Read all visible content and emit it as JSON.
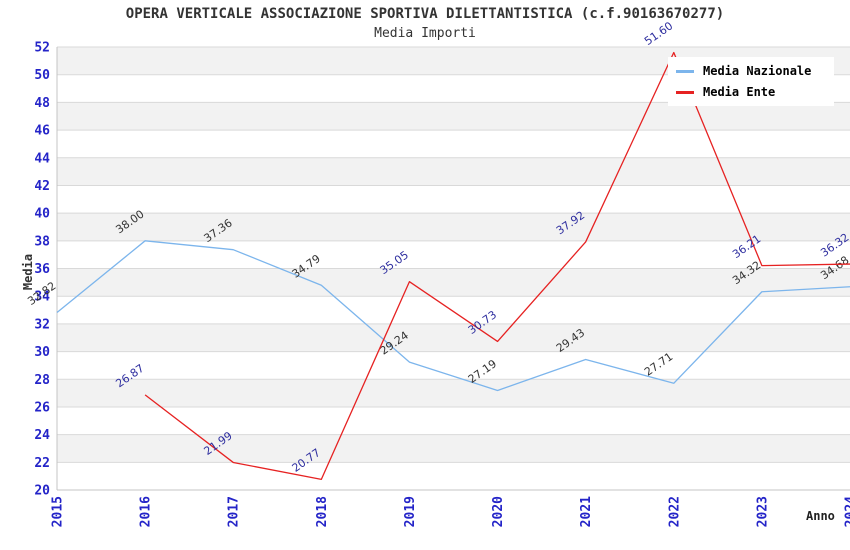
{
  "header": {
    "title": "OPERA VERTICALE ASSOCIAZIONE SPORTIVA DILETTANTISTICA (c.f.90163670277)",
    "subtitle": "Media Importi"
  },
  "axes": {
    "y_title": "Media",
    "x_title": "Anno"
  },
  "legend": {
    "items": [
      {
        "label": "Media Nazionale",
        "color": "#7cb5ec"
      },
      {
        "label": "Media Ente",
        "color": "#e62222"
      }
    ]
  },
  "colors": {
    "background": "#ffffff",
    "band": "#f2f2f2",
    "grid": "#d9d9d9",
    "axis_line": "#c4c4c4",
    "tick_label": "#2424c8",
    "title_text": "#333333",
    "label_nazionale": "#333333",
    "label_ente": "#2e2e9f"
  },
  "chart_data": {
    "type": "line",
    "title": "OPERA VERTICALE ASSOCIAZIONE SPORTIVA DILETTANTISTICA (c.f.90163670277)",
    "subtitle": "Media Importi",
    "xlabel": "Anno",
    "ylabel": "Media",
    "x": [
      2015,
      2016,
      2017,
      2018,
      2019,
      2020,
      2021,
      2022,
      2023,
      2024
    ],
    "series": [
      {
        "name": "Media Nazionale",
        "color": "#7cb5ec",
        "label_color": "#333333",
        "x": [
          2015,
          2016,
          2017,
          2018,
          2019,
          2020,
          2021,
          2022,
          2023,
          2024
        ],
        "values": [
          32.82,
          38.0,
          37.36,
          34.79,
          29.24,
          27.19,
          29.43,
          27.71,
          34.32,
          34.68
        ]
      },
      {
        "name": "Media Ente",
        "color": "#e62222",
        "label_color": "#2e2e9f",
        "x": [
          2016,
          2017,
          2018,
          2019,
          2020,
          2021,
          2022,
          2023,
          2024
        ],
        "values": [
          26.87,
          21.99,
          20.77,
          35.05,
          30.73,
          37.92,
          51.6,
          36.21,
          36.32
        ]
      }
    ],
    "ylim": [
      20,
      52
    ],
    "ytick_step": 2,
    "grid": "horizontal-bands",
    "legend_position": "top-right"
  }
}
